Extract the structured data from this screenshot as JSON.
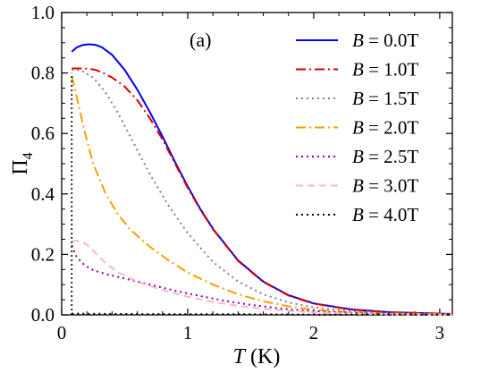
{
  "chart_data": {
    "type": "line",
    "panel_label": "(a)",
    "xlabel_var": "T",
    "xlabel_unit": " (K)",
    "ylabel_main": "Π",
    "ylabel_sub": "4",
    "xlim": [
      0,
      3.1
    ],
    "ylim": [
      0,
      1.0
    ],
    "xticks": [
      0,
      1,
      2,
      3
    ],
    "xtick_labels": [
      "0",
      "1",
      "2",
      "3"
    ],
    "yticks": [
      0.0,
      0.2,
      0.4,
      0.6,
      0.8,
      1.0
    ],
    "ytick_labels": [
      "0.0",
      "0.2",
      "0.4",
      "0.6",
      "0.8",
      "1.0"
    ],
    "grid": false,
    "legend_position": "top-right",
    "series": [
      {
        "name": "B = 0.0T",
        "legend_var": "B",
        "legend_rest": " = 0.0T",
        "color": "#0000ee",
        "dash": "solid",
        "x": [
          0.08,
          0.12,
          0.17,
          0.22,
          0.27,
          0.32,
          0.4,
          0.5,
          0.6,
          0.7,
          0.8,
          0.9,
          1.0,
          1.1,
          1.2,
          1.4,
          1.6,
          1.8,
          2.0,
          2.3,
          2.6,
          3.0,
          3.1
        ],
        "y": [
          0.87,
          0.885,
          0.893,
          0.895,
          0.893,
          0.885,
          0.86,
          0.81,
          0.745,
          0.67,
          0.59,
          0.505,
          0.425,
          0.35,
          0.285,
          0.18,
          0.11,
          0.065,
          0.038,
          0.018,
          0.009,
          0.004,
          0.003
        ]
      },
      {
        "name": "B = 1.0T",
        "legend_var": "B",
        "legend_rest": " = 1.0T",
        "color": "#dd0000",
        "dash": "dashdot",
        "x": [
          0.08,
          0.12,
          0.17,
          0.22,
          0.27,
          0.32,
          0.4,
          0.5,
          0.6,
          0.7,
          0.8,
          0.9,
          1.0,
          1.1,
          1.2,
          1.4,
          1.6,
          1.8,
          2.0,
          2.3,
          2.6,
          3.0,
          3.1
        ],
        "y": [
          0.815,
          0.815,
          0.815,
          0.814,
          0.81,
          0.802,
          0.785,
          0.755,
          0.71,
          0.65,
          0.58,
          0.5,
          0.42,
          0.348,
          0.283,
          0.178,
          0.109,
          0.064,
          0.037,
          0.017,
          0.008,
          0.004,
          0.003
        ]
      },
      {
        "name": "B = 1.5T",
        "legend_var": "B",
        "legend_rest": " = 1.5T",
        "color": "#808080",
        "dash": "dotted",
        "x": [
          0.08,
          0.15,
          0.25,
          0.35,
          0.45,
          0.55,
          0.7,
          0.85,
          1.0,
          1.2,
          1.4,
          1.6,
          1.8,
          2.0,
          2.3,
          2.6,
          3.0,
          3.1
        ],
        "y": [
          0.81,
          0.81,
          0.785,
          0.735,
          0.665,
          0.585,
          0.465,
          0.36,
          0.27,
          0.175,
          0.11,
          0.068,
          0.041,
          0.025,
          0.012,
          0.006,
          0.003,
          0.002
        ]
      },
      {
        "name": "B = 2.0T",
        "legend_var": "B",
        "legend_rest": " = 2.0T",
        "color": "#f5a000",
        "dash": "dashdot",
        "x": [
          0.08,
          0.12,
          0.18,
          0.25,
          0.35,
          0.45,
          0.55,
          0.7,
          0.85,
          1.0,
          1.2,
          1.4,
          1.6,
          1.8,
          2.0,
          2.3,
          2.6,
          3.0,
          3.1
        ],
        "y": [
          0.79,
          0.72,
          0.61,
          0.5,
          0.4,
          0.33,
          0.28,
          0.225,
          0.18,
          0.14,
          0.1,
          0.068,
          0.045,
          0.028,
          0.017,
          0.008,
          0.004,
          0.002,
          0.002
        ]
      },
      {
        "name": "B = 2.5T",
        "legend_var": "B",
        "legend_rest": " = 2.5T",
        "color": "#8800aa",
        "dash": "dotted",
        "x": [
          0.08,
          0.12,
          0.18,
          0.25,
          0.35,
          0.5,
          0.7,
          0.9,
          1.1,
          1.3,
          1.5,
          1.7,
          1.9,
          2.1,
          2.4,
          2.7,
          3.0,
          3.1
        ],
        "y": [
          0.23,
          0.19,
          0.165,
          0.148,
          0.135,
          0.12,
          0.1,
          0.08,
          0.062,
          0.046,
          0.033,
          0.023,
          0.015,
          0.01,
          0.005,
          0.003,
          0.002,
          0.001
        ]
      },
      {
        "name": "B = 3.0T",
        "legend_var": "B",
        "legend_rest": " = 3.0T",
        "color": "#f5b8c4",
        "dash": "dashed",
        "x": [
          0.08,
          0.12,
          0.17,
          0.22,
          0.28,
          0.35,
          0.45,
          0.6,
          0.8,
          1.0,
          1.2,
          1.4,
          1.6,
          1.8,
          2.0,
          2.3,
          2.6,
          3.0,
          3.1
        ],
        "y": [
          0.245,
          0.245,
          0.24,
          0.225,
          0.2,
          0.17,
          0.14,
          0.11,
          0.082,
          0.06,
          0.043,
          0.03,
          0.02,
          0.013,
          0.008,
          0.004,
          0.002,
          0.001,
          0.001
        ]
      },
      {
        "name": "B = 4.0T",
        "legend_var": "B",
        "legend_rest": " = 4.0T",
        "color": "#000000",
        "dash": "dotted",
        "x": [
          0.08,
          0.5,
          1.0,
          1.5,
          2.0,
          2.5,
          3.0,
          3.1
        ],
        "y": [
          0.004,
          0.003,
          0.002,
          0.002,
          0.001,
          0.001,
          0.001,
          0.001
        ]
      }
    ]
  }
}
